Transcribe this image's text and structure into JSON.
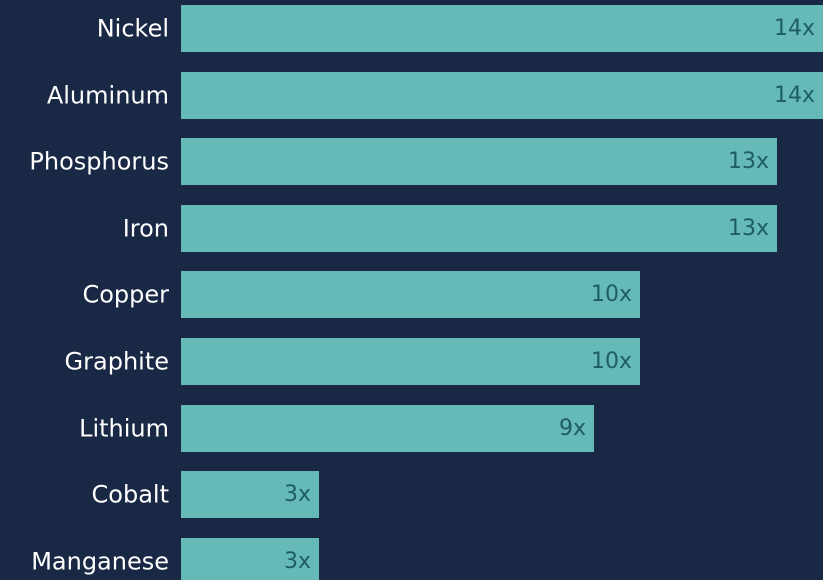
{
  "colors": {
    "background": "#192844",
    "bar": "#65b9b7",
    "label": "#ffffff",
    "value_label": "#1e5e62"
  },
  "chart_data": {
    "type": "bar",
    "orientation": "horizontal",
    "categories": [
      "Nickel",
      "Aluminum",
      "Phosphorus",
      "Iron",
      "Copper",
      "Graphite",
      "Lithium",
      "Cobalt",
      "Manganese"
    ],
    "values": [
      14,
      14,
      13,
      13,
      10,
      10,
      9,
      3,
      3
    ],
    "value_labels": [
      "14x",
      "14x",
      "13x",
      "13x",
      "10x",
      "10x",
      "9x",
      "3x",
      "3x"
    ],
    "title": "",
    "xlabel": "",
    "ylabel": "",
    "xlim": [
      0,
      14
    ],
    "grid": false,
    "legend": "none"
  }
}
